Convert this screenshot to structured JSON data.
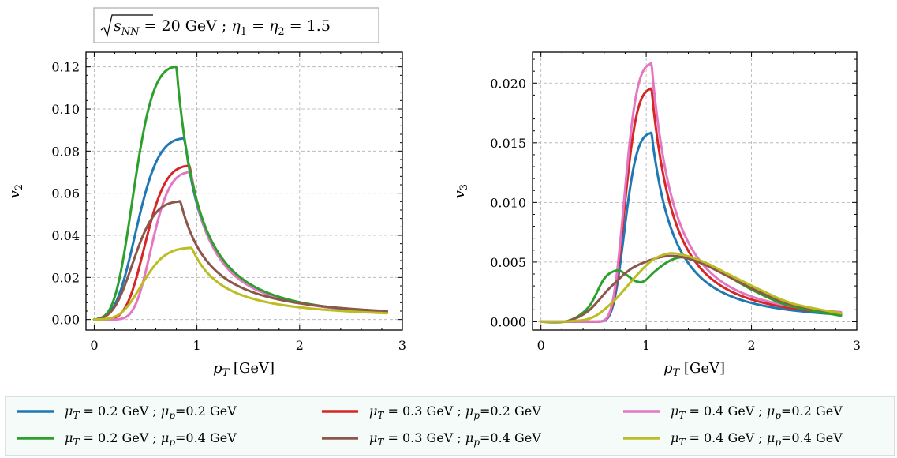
{
  "annotation": "√s_NN = 20 GeV ; η₁ = η₂ = 1.5",
  "annotation_parts": {
    "prefix": "√",
    "s": "s",
    "s_sub": "NN",
    "mid": " = 20 GeV ; ",
    "eta": "η",
    "sub1": "1",
    "eq": " = ",
    "sub2": "2",
    "tail": " = 1.5"
  },
  "chart_data": [
    {
      "type": "line",
      "xlabel": "p_T [GeV]",
      "xlabel_parts": {
        "p": "p",
        "sub": "T",
        "unit": " [GeV]"
      },
      "ylabel": "v_2",
      "ylabel_parts": {
        "v": "v",
        "sub": "2"
      },
      "xlim": [
        -0.08,
        3.0
      ],
      "ylim": [
        -0.005,
        0.127
      ],
      "xticks": [
        0,
        1,
        2,
        3
      ],
      "xtick_labels": [
        "0",
        "1",
        "2",
        "3"
      ],
      "yticks": [
        0.0,
        0.02,
        0.04,
        0.06,
        0.08,
        0.1,
        0.12
      ],
      "ytick_labels": [
        "0.00",
        "0.02",
        "0.04",
        "0.06",
        "0.08",
        "0.10",
        "0.12"
      ],
      "grid": true,
      "series": [
        {
          "name": "μ_T = 0.2 GeV ; μ_p=0.2 GeV",
          "color": "#1f77b4",
          "peak_x": 0.88,
          "peak_y": 0.086,
          "width_left": 0.37,
          "tail_x": 2.85,
          "tail_y": 0.0035
        },
        {
          "name": "μ_T = 0.3 GeV ; μ_p=0.2 GeV",
          "color": "#d62728",
          "peak_x": 0.93,
          "peak_y": 0.073,
          "width_left": 0.34,
          "tail_x": 2.85,
          "tail_y": 0.0035
        },
        {
          "name": "μ_T = 0.4 GeV ; μ_p=0.2 GeV",
          "color": "#e377c2",
          "peak_x": 0.94,
          "peak_y": 0.07,
          "width_left": 0.3,
          "tail_x": 2.85,
          "tail_y": 0.0035
        },
        {
          "name": "μ_T = 0.2 GeV ; μ_p=0.4 GeV",
          "color": "#2ca02c",
          "peak_x": 0.8,
          "peak_y": 0.12,
          "width_left": 0.33,
          "tail_x": 2.85,
          "tail_y": 0.0035
        },
        {
          "name": "μ_T = 0.3 GeV ; μ_p=0.4 GeV",
          "color": "#8c564b",
          "peak_x": 0.84,
          "peak_y": 0.056,
          "width_left": 0.36,
          "tail_x": 2.85,
          "tail_y": 0.004
        },
        {
          "name": "μ_T = 0.4 GeV ; μ_p=0.4 GeV",
          "color": "#bcbd22",
          "peak_x": 0.95,
          "peak_y": 0.034,
          "width_left": 0.38,
          "tail_x": 2.85,
          "tail_y": 0.003
        }
      ]
    },
    {
      "type": "line",
      "xlabel": "p_T [GeV]",
      "xlabel_parts": {
        "p": "p",
        "sub": "T",
        "unit": " [GeV]"
      },
      "ylabel": "v_3",
      "ylabel_parts": {
        "v": "v",
        "sub": "3"
      },
      "xlim": [
        -0.08,
        3.0
      ],
      "ylim": [
        -0.0007,
        0.0226
      ],
      "xticks": [
        0,
        1,
        2,
        3
      ],
      "xtick_labels": [
        "0",
        "1",
        "2",
        "3"
      ],
      "yticks": [
        0.0,
        0.005,
        0.01,
        0.015,
        0.02
      ],
      "ytick_labels": [
        "0.000",
        "0.005",
        "0.010",
        "0.015",
        "0.020"
      ],
      "grid": true,
      "series": [
        {
          "name": "μ_T = 0.2 GeV ; μ_p=0.2 GeV",
          "color": "#1f77b4",
          "peak_x": 1.05,
          "peak_y": 0.0158,
          "width_left": 0.2,
          "tail_x": 2.85,
          "tail_y": 0.0006
        },
        {
          "name": "μ_T = 0.3 GeV ; μ_p=0.2 GeV",
          "color": "#d62728",
          "peak_x": 1.05,
          "peak_y": 0.0195,
          "width_left": 0.2,
          "tail_x": 2.85,
          "tail_y": 0.0007
        },
        {
          "name": "μ_T = 0.4 GeV ; μ_p=0.2 GeV",
          "color": "#e377c2",
          "peak_x": 1.05,
          "peak_y": 0.0216,
          "width_left": 0.2,
          "tail_x": 2.85,
          "tail_y": 0.0008
        },
        {
          "name": "μ_T = 0.2 GeV ; μ_p=0.4 GeV",
          "color": "#2ca02c",
          "points": [
            [
              0,
              0
            ],
            [
              0.25,
              5e-05
            ],
            [
              0.45,
              0.0012
            ],
            [
              0.6,
              0.0036
            ],
            [
              0.72,
              0.0043
            ],
            [
              0.8,
              0.004
            ],
            [
              0.9,
              0.0034
            ],
            [
              0.98,
              0.0034
            ],
            [
              1.08,
              0.0042
            ],
            [
              1.2,
              0.005
            ],
            [
              1.32,
              0.0054
            ],
            [
              1.45,
              0.0052
            ],
            [
              1.7,
              0.0042
            ],
            [
              2.0,
              0.0027
            ],
            [
              2.3,
              0.0015
            ],
            [
              2.6,
              0.0009
            ],
            [
              2.85,
              0.0005
            ]
          ]
        },
        {
          "name": "μ_T = 0.3 GeV ; μ_p=0.4 GeV",
          "color": "#8c564b",
          "points": [
            [
              0,
              0
            ],
            [
              0.25,
              5e-05
            ],
            [
              0.45,
              0.0009
            ],
            [
              0.65,
              0.0028
            ],
            [
              0.85,
              0.0044
            ],
            [
              1.05,
              0.0052
            ],
            [
              1.2,
              0.0055
            ],
            [
              1.35,
              0.0054
            ],
            [
              1.55,
              0.0048
            ],
            [
              1.8,
              0.0037
            ],
            [
              2.1,
              0.0024
            ],
            [
              2.4,
              0.0014
            ],
            [
              2.85,
              0.0007
            ]
          ]
        },
        {
          "name": "μ_T = 0.4 GeV ; μ_p=0.4 GeV",
          "color": "#bcbd22",
          "points": [
            [
              0,
              0
            ],
            [
              0.3,
              5e-05
            ],
            [
              0.5,
              0.0004
            ],
            [
              0.7,
              0.0018
            ],
            [
              0.9,
              0.0038
            ],
            [
              1.05,
              0.0051
            ],
            [
              1.2,
              0.0057
            ],
            [
              1.35,
              0.0056
            ],
            [
              1.55,
              0.005
            ],
            [
              1.8,
              0.0039
            ],
            [
              2.1,
              0.0026
            ],
            [
              2.4,
              0.0015
            ],
            [
              2.85,
              0.0007
            ]
          ]
        }
      ]
    }
  ],
  "legend": {
    "placement": "bottom",
    "entries": [
      {
        "label_prefix": "μ",
        "label_t_sub": "T",
        "label_mid": " = 0.2 GeV ; ",
        "label_p_sub": "p",
        "label_tail": "=0.2 GeV",
        "color": "#1f77b4"
      },
      {
        "label_prefix": "μ",
        "label_t_sub": "T",
        "label_mid": " = 0.3 GeV ; ",
        "label_p_sub": "p",
        "label_tail": "=0.2 GeV",
        "color": "#d62728"
      },
      {
        "label_prefix": "μ",
        "label_t_sub": "T",
        "label_mid": " = 0.4 GeV ; ",
        "label_p_sub": "p",
        "label_tail": "=0.2 GeV",
        "color": "#e377c2"
      },
      {
        "label_prefix": "μ",
        "label_t_sub": "T",
        "label_mid": " = 0.2 GeV ; ",
        "label_p_sub": "p",
        "label_tail": "=0.4 GeV",
        "color": "#2ca02c"
      },
      {
        "label_prefix": "μ",
        "label_t_sub": "T",
        "label_mid": " = 0.3 GeV ; ",
        "label_p_sub": "p",
        "label_tail": "=0.4 GeV",
        "color": "#8c564b"
      },
      {
        "label_prefix": "μ",
        "label_t_sub": "T",
        "label_mid": " = 0.4 GeV ; ",
        "label_p_sub": "p",
        "label_tail": "=0.4 GeV",
        "color": "#bcbd22"
      }
    ]
  }
}
